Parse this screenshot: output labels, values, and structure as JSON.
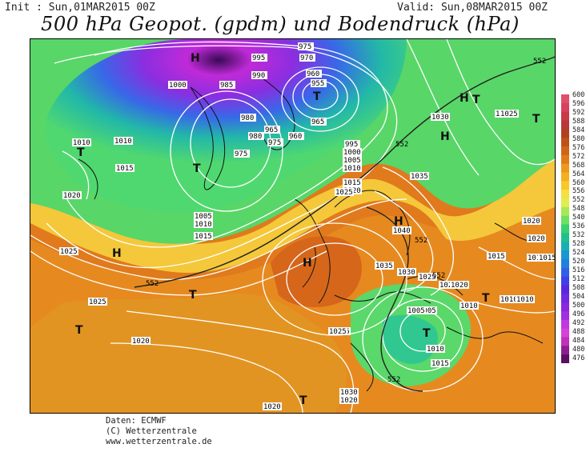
{
  "header": {
    "init": "Init : Sun,01MAR2015 00Z",
    "valid": "Valid: Sun,08MAR2015 00Z",
    "title": "500 hPa Geopot. (gpdm) und Bodendruck (hPa)"
  },
  "credits": {
    "line1": "Daten: ECMWF",
    "line2": "(C) Wetterzentrale",
    "line3": "www.wetterzentrale.de"
  },
  "colorbar": {
    "labels": [
      "600",
      "596",
      "592",
      "588",
      "584",
      "580",
      "576",
      "572",
      "568",
      "564",
      "560",
      "556",
      "552",
      "548",
      "540",
      "536",
      "532",
      "528",
      "524",
      "520",
      "516",
      "512",
      "508",
      "504",
      "500",
      "496",
      "492",
      "488",
      "484",
      "480",
      "476"
    ],
    "colors": [
      "#e0506e",
      "#d94060",
      "#c83a48",
      "#b83838",
      "#b04020",
      "#c05018",
      "#d06418",
      "#e07c18",
      "#ec9a1c",
      "#f4b020",
      "#f8c828",
      "#f4e040",
      "#e0ee50",
      "#a8e854",
      "#6ee060",
      "#38d070",
      "#20c08c",
      "#18b0b0",
      "#1898d0",
      "#2080e0",
      "#3060e8",
      "#4040e8",
      "#5828e0",
      "#7028e0",
      "#8828e0",
      "#a030e0",
      "#c038e0",
      "#d840d8",
      "#c030b8",
      "#8a2090",
      "#5a1060"
    ]
  },
  "map": {
    "pressure_labels": [
      "975",
      "970",
      "960",
      "955",
      "995",
      "990",
      "985",
      "1000",
      "980",
      "975",
      "965",
      "960",
      "965",
      "980",
      "975",
      "1010",
      "1010",
      "1015",
      "1020",
      "1005",
      "1010",
      "1015",
      "1025",
      "1025",
      "1020",
      "995",
      "1000",
      "1005",
      "1010",
      "1015",
      "1020",
      "1025",
      "1030",
      "1035",
      "1040",
      "1030",
      "1025",
      "1020",
      "1015",
      "1010",
      "1005",
      "1010",
      "1015",
      "1020",
      "1025",
      "1035",
      "1030",
      "1025",
      "1020",
      "1020",
      "1020",
      "1015",
      "1010",
      "1005",
      "1010",
      "1015",
      "1020",
      "1025",
      "1030",
      "1020",
      "1015"
    ],
    "centers": [
      "H",
      "H",
      "H",
      "H",
      "H",
      "H",
      "T",
      "T",
      "T",
      "T",
      "T",
      "T",
      "T",
      "T",
      "T",
      "T"
    ],
    "isohypse_labels": [
      "552",
      "552",
      "552",
      "552",
      "552",
      "552"
    ]
  }
}
